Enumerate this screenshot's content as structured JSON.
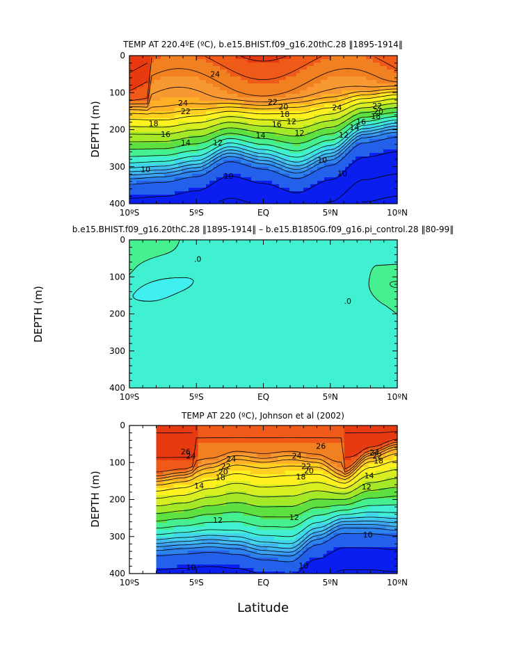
{
  "figure": {
    "xlabel": "Latitude"
  },
  "chart_data": [
    {
      "type": "heatmap",
      "title": "TEMP AT 220.4ºE (ºC), b.e15.BHIST.f09_g16.20thC.28 ‖1895-1914‖",
      "xlabel": "",
      "ylabel": "DEPTH (m)",
      "xlim": [
        -10,
        10
      ],
      "ylim": [
        400,
        0
      ],
      "x_ticks": [
        "10ºS",
        "5ºS",
        "EQ",
        "5ºN",
        "10ºN"
      ],
      "y_ticks": [
        "0",
        "100",
        "200",
        "300",
        "400"
      ],
      "colormap": [
        "#0a1ef0",
        "#2361ea",
        "#2d83ee",
        "#3ba0f2",
        "#42b8f0",
        "#3fd6ee",
        "#40f0d0",
        "#45f090",
        "#5ee040",
        "#a4e828",
        "#d8ee20",
        "#fff020",
        "#ffd020",
        "#ffb024",
        "#f89830",
        "#f08020",
        "#f05a18",
        "#e83a10"
      ],
      "fields": {
        "thermocline_depth_by_lat": {
          "x": [
            -10,
            -7.5,
            -5,
            -2.5,
            0,
            2.5,
            5,
            7.5,
            10
          ],
          "y": [
            155,
            160,
            150,
            145,
            148,
            140,
            130,
            115,
            105
          ]
        },
        "deep_10C_isotherm_by_lat": {
          "x": [
            -10,
            -7.5,
            -5,
            -2.5,
            0,
            2.5,
            5,
            7.5,
            10
          ],
          "y": [
            325,
            320,
            305,
            265,
            285,
            310,
            275,
            215,
            200
          ]
        }
      },
      "contour_labels": [
        {
          "x": -3.6,
          "y": 50,
          "text": "24"
        },
        {
          "x": -6.0,
          "y": 128,
          "text": "24"
        },
        {
          "x": -5.8,
          "y": 150,
          "text": "22"
        },
        {
          "x": -8.2,
          "y": 183,
          "text": "18"
        },
        {
          "x": -7.3,
          "y": 212,
          "text": "16"
        },
        {
          "x": -5.8,
          "y": 235,
          "text": "14"
        },
        {
          "x": -3.4,
          "y": 235,
          "text": "12"
        },
        {
          "x": 0.7,
          "y": 125,
          "text": "22"
        },
        {
          "x": 1.5,
          "y": 138,
          "text": "20"
        },
        {
          "x": 1.6,
          "y": 158,
          "text": "18"
        },
        {
          "x": 1.0,
          "y": 185,
          "text": "16"
        },
        {
          "x": -0.2,
          "y": 215,
          "text": "14"
        },
        {
          "x": 2.7,
          "y": 208,
          "text": "12"
        },
        {
          "x": 2.1,
          "y": 177,
          "text": "12"
        },
        {
          "x": 5.5,
          "y": 140,
          "text": "24"
        },
        {
          "x": 8.5,
          "y": 135,
          "text": "22"
        },
        {
          "x": 8.6,
          "y": 150,
          "text": "20"
        },
        {
          "x": 8.4,
          "y": 163,
          "text": "18"
        },
        {
          "x": 7.3,
          "y": 178,
          "text": "16"
        },
        {
          "x": 6.8,
          "y": 193,
          "text": "14"
        },
        {
          "x": 6.0,
          "y": 214,
          "text": "12"
        },
        {
          "x": -8.8,
          "y": 307,
          "text": "10"
        },
        {
          "x": -2.6,
          "y": 325,
          "text": "10"
        },
        {
          "x": 5.9,
          "y": 318,
          "text": "10"
        },
        {
          "x": 4.4,
          "y": 282,
          "text": "10"
        }
      ]
    },
    {
      "type": "heatmap",
      "title": "b.e15.BHIST.f09_g16.20thC.28 ‖1895-1914‖ – b.e15.B1850G.f09_g16.pi_control.28 ‖80-99‖",
      "xlabel": "",
      "ylabel": "DEPTH (m)",
      "xlim": [
        -10,
        10
      ],
      "ylim": [
        400,
        0
      ],
      "x_ticks": [
        "10ºS",
        "5ºS",
        "EQ",
        "5ºN",
        "10ºN"
      ],
      "y_ticks": [
        "0",
        "100",
        "200",
        "300",
        "400"
      ],
      "colors": {
        "background": "#40f0d0",
        "positive": "#45f090",
        "negative": "#40f0f0"
      },
      "contour_labels": [
        {
          "x": -4.9,
          "y": 52,
          "text": ".0"
        },
        {
          "x": 6.3,
          "y": 165,
          "text": ".0"
        }
      ]
    },
    {
      "type": "heatmap",
      "title": "TEMP AT 220 (ºC), Johnson et al (2002)",
      "xlabel": "Latitude",
      "ylabel": "DEPTH (m)",
      "xlim": [
        -10,
        10
      ],
      "ylim": [
        400,
        0
      ],
      "data_xrange": [
        -8,
        10
      ],
      "x_ticks": [
        "10ºS",
        "5ºS",
        "EQ",
        "5ºN",
        "10ºN"
      ],
      "y_ticks": [
        "0",
        "100",
        "200",
        "300",
        "400"
      ],
      "fields": {
        "thermocline_depth_by_lat": {
          "x": [
            -8,
            -6,
            -4,
            -2,
            0,
            2,
            4,
            6,
            8,
            10
          ],
          "y": [
            160,
            150,
            125,
            100,
            108,
            100,
            110,
            150,
            95,
            70
          ]
        },
        "deep_10C_isotherm_by_lat": {
          "x": [
            -8,
            -6,
            -4,
            -2,
            0,
            2,
            4,
            6,
            8,
            10
          ],
          "y": [
            330,
            325,
            320,
            325,
            340,
            345,
            300,
            270,
            270,
            275
          ]
        }
      },
      "contour_labels": [
        {
          "x": -5.8,
          "y": 70,
          "text": "26"
        },
        {
          "x": -5.4,
          "y": 82,
          "text": "24"
        },
        {
          "x": -2.4,
          "y": 90,
          "text": "24"
        },
        {
          "x": -2.8,
          "y": 110,
          "text": "22"
        },
        {
          "x": -3.0,
          "y": 125,
          "text": "20"
        },
        {
          "x": -3.2,
          "y": 140,
          "text": "18"
        },
        {
          "x": -4.8,
          "y": 162,
          "text": "14"
        },
        {
          "x": 4.3,
          "y": 55,
          "text": "26"
        },
        {
          "x": 2.5,
          "y": 82,
          "text": "24"
        },
        {
          "x": 3.2,
          "y": 110,
          "text": "22"
        },
        {
          "x": 3.4,
          "y": 122,
          "text": "20"
        },
        {
          "x": 2.8,
          "y": 138,
          "text": "18"
        },
        {
          "x": 8.3,
          "y": 72,
          "text": "24"
        },
        {
          "x": 8.5,
          "y": 82,
          "text": "22"
        },
        {
          "x": 8.6,
          "y": 95,
          "text": "18"
        },
        {
          "x": 7.9,
          "y": 135,
          "text": "14"
        },
        {
          "x": 7.7,
          "y": 165,
          "text": "12"
        },
        {
          "x": -3.4,
          "y": 255,
          "text": "12"
        },
        {
          "x": 2.3,
          "y": 248,
          "text": "12"
        },
        {
          "x": 7.8,
          "y": 295,
          "text": "10"
        },
        {
          "x": -5.4,
          "y": 383,
          "text": "10"
        },
        {
          "x": 3.0,
          "y": 378,
          "text": "10"
        }
      ]
    }
  ]
}
